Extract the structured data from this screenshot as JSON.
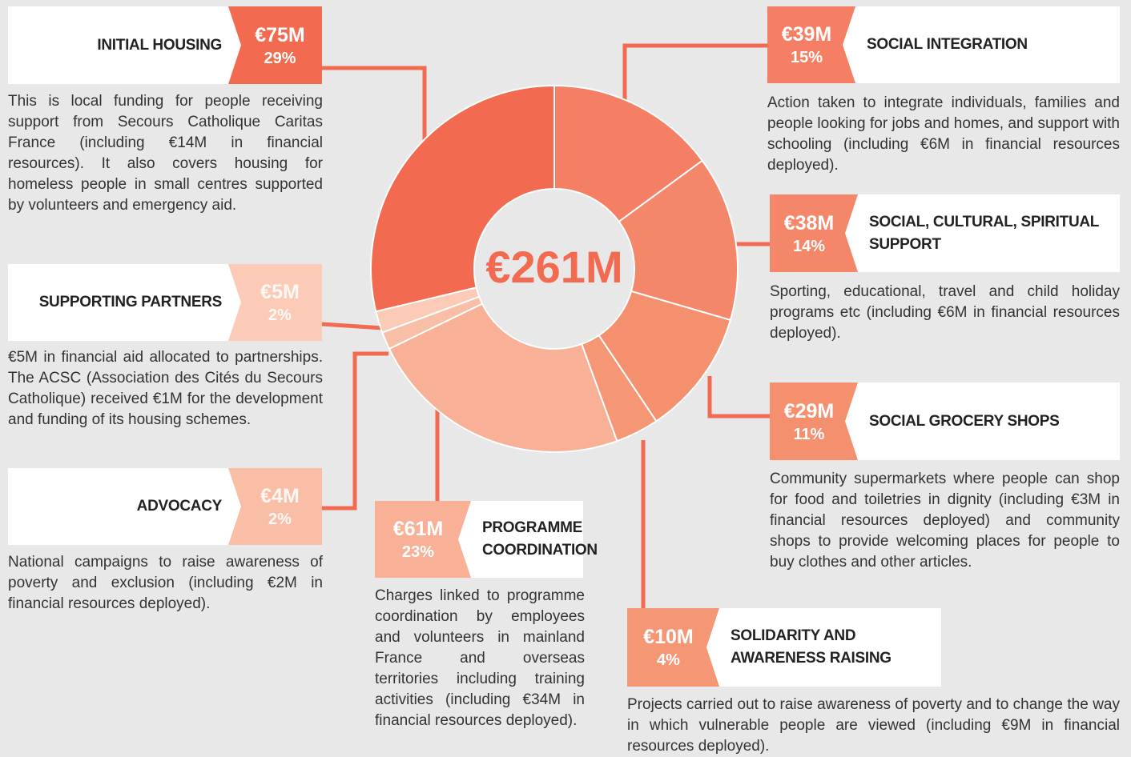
{
  "chart_data": {
    "type": "donut",
    "center_label": "€261M",
    "categories": [
      "SOCIAL INTEGRATION",
      "SOCIAL, CULTURAL, SPIRITUAL SUPPORT",
      "SOCIAL GROCERY SHOPS",
      "SOLIDARITY AND AWARENESS RAISING",
      "PROGRAMME COORDINATION",
      "ADVOCACY",
      "SUPPORTING PARTNERS",
      "INITIAL HOUSING"
    ],
    "values": [
      39,
      38,
      29,
      10,
      61,
      4,
      5,
      75
    ],
    "value_labels": [
      "€39M",
      "€38M",
      "€29M",
      "€10M",
      "€61M",
      "€4M",
      "€5M",
      "€75M"
    ],
    "percentages": [
      15,
      14,
      11,
      4,
      23,
      2,
      2,
      29
    ],
    "percentage_labels": [
      "15%",
      "14%",
      "11%",
      "4%",
      "23%",
      "2%",
      "2%",
      "29%"
    ],
    "colors": [
      "#f47f64",
      "#f4876a",
      "#f5906f",
      "#f59775",
      "#f8b196",
      "#f9bea6",
      "#fbcbb8",
      "#f26b50"
    ],
    "descriptions": [
      "Action taken to integrate individuals, families and people looking for jobs and homes, and support with schooling (including €6M in financial resources deployed).",
      "Sporting, educational, travel and child holiday programs etc (including €6M in financial resources deployed).",
      "Community supermarkets where people can shop for food and toiletries in dignity (including €3M in financial resources deployed) and community shops to provide welcoming places for people to buy clothes and other articles.",
      "Projects carried out to raise awareness of poverty and to change the way in which vulnerable people are viewed (including €9M in financial resources deployed).",
      "Charges linked to programme coordination by employees and volunteers in mainland France and overseas territories including training activities (including €34M in financial resources deployed).",
      "National campaigns to raise awareness of poverty and exclusion (including €2M in financial resources deployed).",
      "€5M in financial aid allocated to partnerships. The ACSC (Association des Cités du Secours Catholique) received €1M for the development and funding of its housing schemes.",
      "This is local funding for people receiving support from Secours Catholique Caritas France (including €14M in financial resources). It also covers housing for homeless people in small centres supported by volunteers and emergency aid."
    ]
  }
}
